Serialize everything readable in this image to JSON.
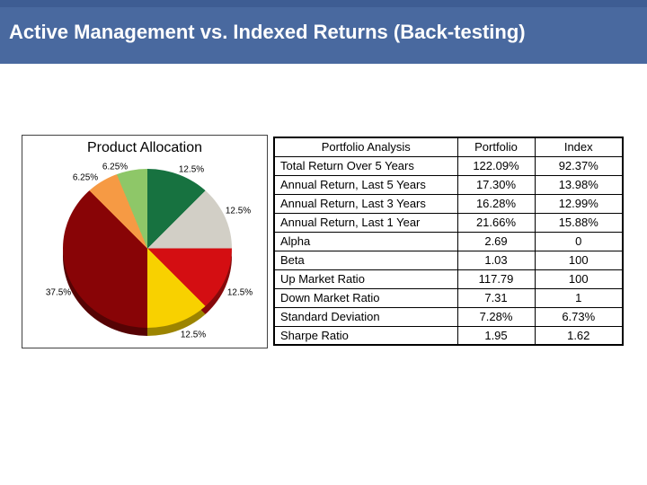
{
  "slide": {
    "title": "Active Management vs. Indexed Returns (Back-testing)",
    "header_bg": "#49699f",
    "header_bg_top": "#3e5d93",
    "header_text_color": "#ffffff",
    "body_bg": "#ffffff"
  },
  "chart_data": [
    {
      "type": "pie",
      "title": "Product Allocation",
      "direction": "clockwise",
      "start_angle_deg": 0,
      "effect": "3d",
      "legend_position": "none",
      "segments": [
        {
          "label": "12.5%",
          "value": 12.5,
          "color": "#177240"
        },
        {
          "label": "12.5%",
          "value": 12.5,
          "color": "#d2cfc6"
        },
        {
          "label": "12.5%",
          "value": 12.5,
          "color": "#d40e12"
        },
        {
          "label": "12.5%",
          "value": 12.5,
          "color": "#f8d100"
        },
        {
          "label": "37.5%",
          "value": 37.5,
          "color": "#880406"
        },
        {
          "label": "6.25%",
          "value": 6.25,
          "color": "#f69a44"
        },
        {
          "label": "6.25%",
          "value": 6.25,
          "color": "#8ec768"
        }
      ]
    },
    {
      "type": "table",
      "columns": [
        "Portfolio Analysis",
        "Portfolio",
        "Index"
      ],
      "rows": [
        [
          "Total Return Over 5 Years",
          "122.09%",
          "92.37%"
        ],
        [
          "Annual Return, Last 5 Years",
          "17.30%",
          "13.98%"
        ],
        [
          "Annual Return, Last 3 Years",
          "16.28%",
          "12.99%"
        ],
        [
          "Annual Return, Last 1 Year",
          "21.66%",
          "15.88%"
        ],
        [
          "Alpha",
          "2.69",
          "0"
        ],
        [
          "Beta",
          "1.03",
          "100"
        ],
        [
          "Up Market Ratio",
          "117.79",
          "100"
        ],
        [
          "Down Market Ratio",
          "7.31",
          "1"
        ],
        [
          "Standard Deviation",
          "7.28%",
          "6.73%"
        ],
        [
          "Sharpe Ratio",
          "1.95",
          "1.62"
        ]
      ]
    }
  ]
}
